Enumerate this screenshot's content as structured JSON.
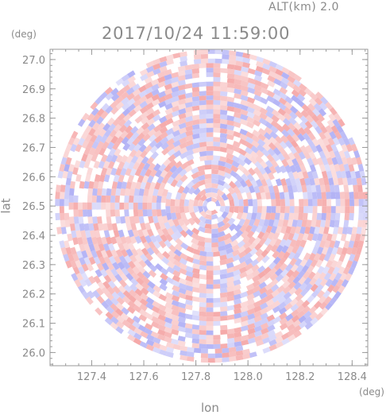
{
  "header": {
    "alt_label": "ALT(km) 2.0",
    "datetime": "2017/10/24 11:59:00"
  },
  "chart_data": {
    "type": "heatmap",
    "title": "2017/10/24 11:59:00",
    "xlabel": "lon",
    "ylabel": "lat",
    "xunit": "(deg)",
    "yunit": "(deg)",
    "xlim": [
      127.24,
      128.46
    ],
    "ylim": [
      25.955,
      27.035
    ],
    "xticks": [
      "127.4",
      "127.6",
      "127.8",
      "128.0",
      "128.2",
      "128.4"
    ],
    "xtick_values": [
      127.4,
      127.6,
      127.8,
      128.0,
      128.2,
      128.4
    ],
    "yticks": [
      "26.0",
      "26.1",
      "26.2",
      "26.3",
      "26.4",
      "26.5",
      "26.6",
      "26.7",
      "26.8",
      "26.9",
      "27.0"
    ],
    "ytick_values": [
      26.0,
      26.1,
      26.2,
      26.3,
      26.4,
      26.5,
      26.6,
      26.7,
      26.8,
      26.9,
      27.0
    ],
    "field": {
      "center_lon": 127.86,
      "center_lat": 26.5,
      "radius_lat_deg": 0.535,
      "description_colors": {
        "positive": "#f4a0a0",
        "negative": "#a8a8f4",
        "zero": "#ffffff"
      }
    },
    "grid": false,
    "legend": "none"
  }
}
